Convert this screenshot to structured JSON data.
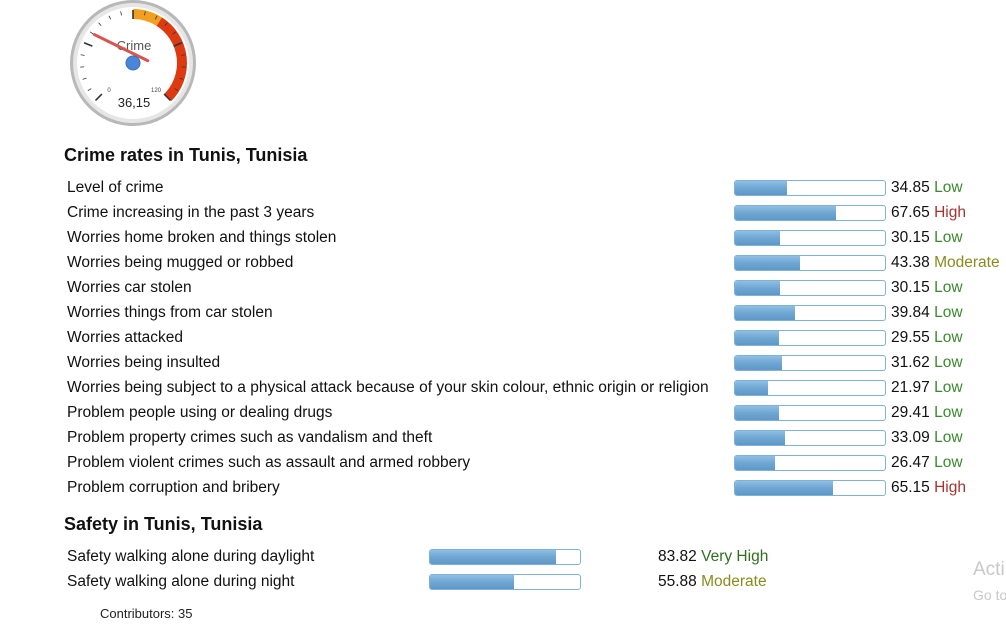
{
  "gauge": {
    "label": "Crime",
    "value_text": "36,15",
    "value": 36.15,
    "min_label": "0",
    "max_label": "120",
    "min": 0,
    "max": 120
  },
  "crime": {
    "title": "Crime rates in Tunis, Tunisia",
    "rows": [
      {
        "label": "Level of crime",
        "value": "34.85",
        "level": "Low"
      },
      {
        "label": "Crime increasing in the past 3 years",
        "value": "67.65",
        "level": "High"
      },
      {
        "label": "Worries home broken and things stolen",
        "value": "30.15",
        "level": "Low"
      },
      {
        "label": "Worries being mugged or robbed",
        "value": "43.38",
        "level": "Moderate"
      },
      {
        "label": "Worries car stolen",
        "value": "30.15",
        "level": "Low"
      },
      {
        "label": "Worries things from car stolen",
        "value": "39.84",
        "level": "Low"
      },
      {
        "label": "Worries attacked",
        "value": "29.55",
        "level": "Low"
      },
      {
        "label": "Worries being insulted",
        "value": "31.62",
        "level": "Low"
      },
      {
        "label": "Worries being subject to a physical attack because of your skin colour, ethnic origin or religion",
        "value": "21.97",
        "level": "Low"
      },
      {
        "label": "Problem people using or dealing drugs",
        "value": "29.41",
        "level": "Low"
      },
      {
        "label": "Problem property crimes such as vandalism and theft",
        "value": "33.09",
        "level": "Low"
      },
      {
        "label": "Problem violent crimes such as assault and armed robbery",
        "value": "26.47",
        "level": "Low"
      },
      {
        "label": "Problem corruption and bribery",
        "value": "65.15",
        "level": "High"
      }
    ]
  },
  "safety": {
    "title": "Safety in Tunis, Tunisia",
    "rows": [
      {
        "label": "Safety walking alone during daylight",
        "value": "83.82",
        "level": "Very High"
      },
      {
        "label": "Safety walking alone during night",
        "value": "55.88",
        "level": "Moderate"
      }
    ]
  },
  "contributors": "Contributors: 35",
  "watermark": {
    "line1": "Acti",
    "line2": "Go to"
  },
  "colors": {
    "low": "#3a8a2f",
    "high": "#a8332d",
    "moderate": "#8a8a1f",
    "very_high": "#2f6f1f",
    "bar_fill": "#6fa6d2",
    "bar_border": "#7fb2d8"
  }
}
